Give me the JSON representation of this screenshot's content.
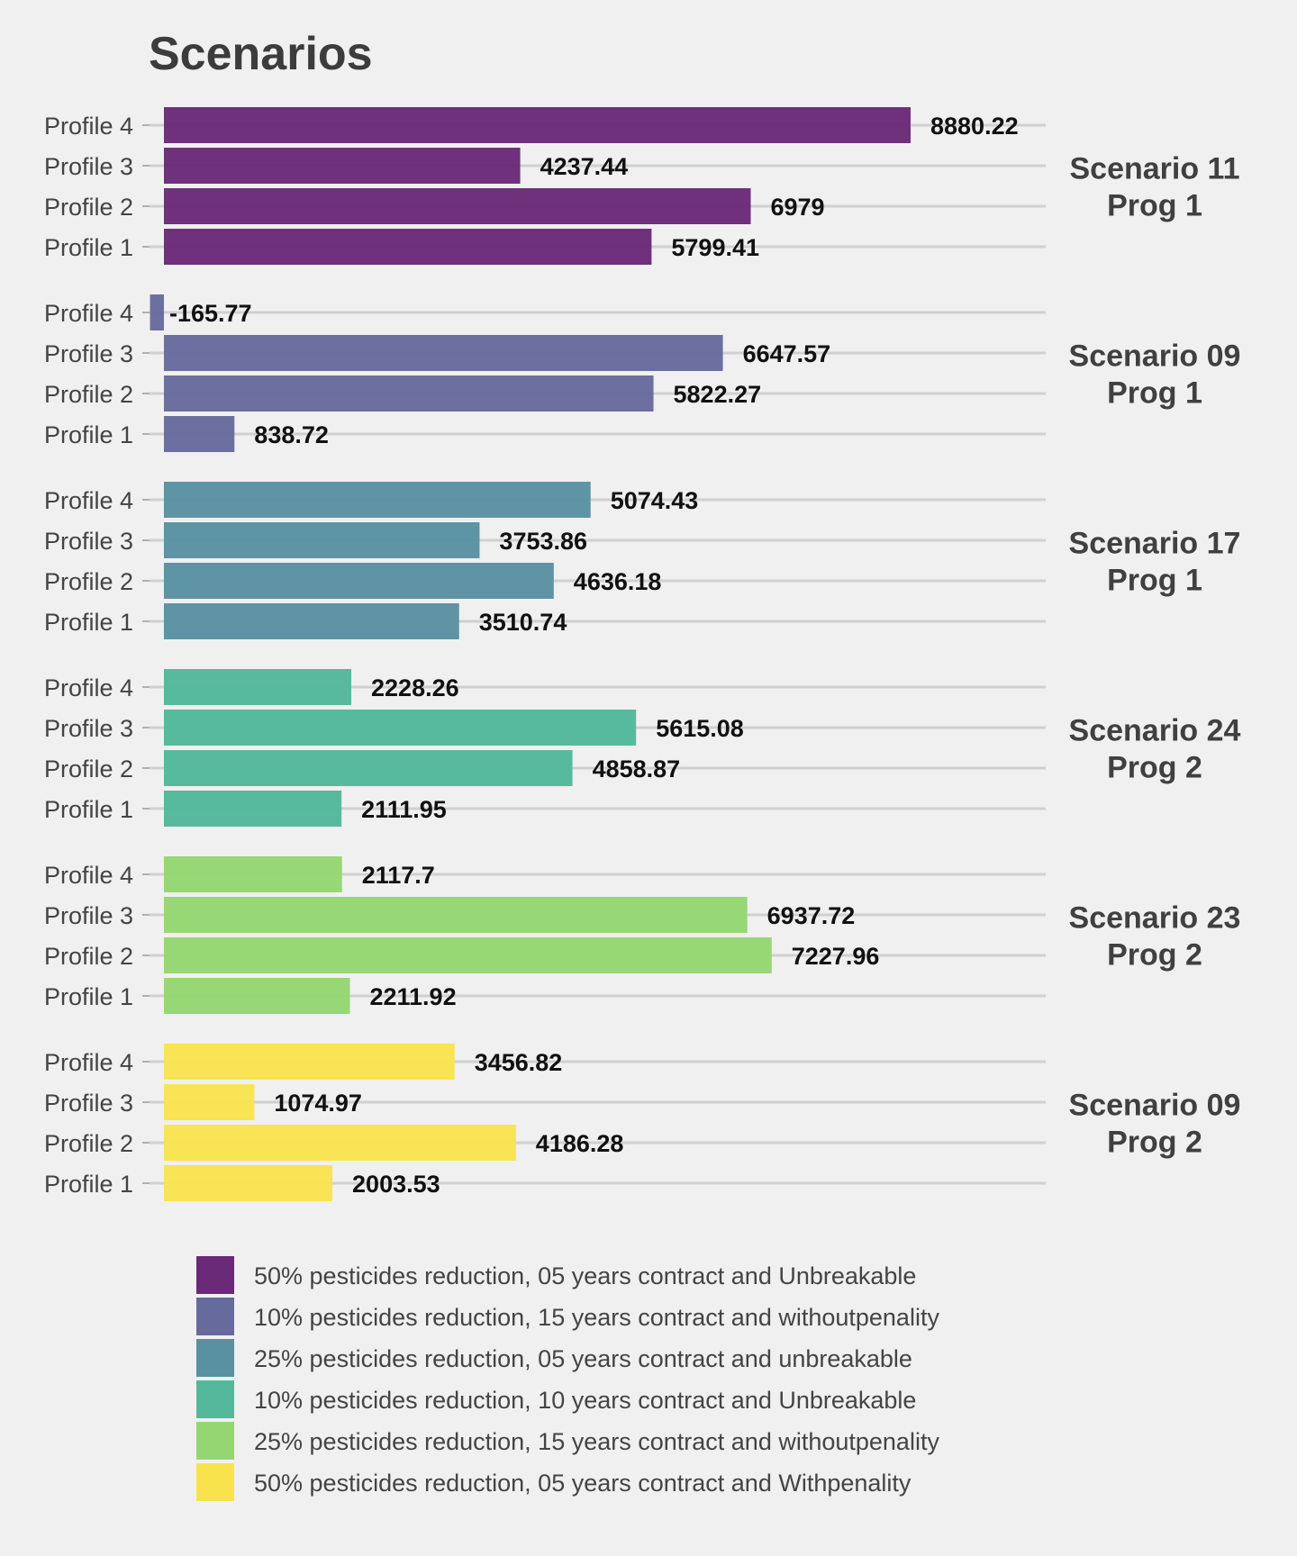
{
  "chart_data": {
    "type": "bar",
    "orientation": "horizontal",
    "title": "Scenarios",
    "grid": true,
    "legend_position": "bottom",
    "xlim": [
      -165.77,
      8880.22
    ],
    "categories": [
      "Profile 4",
      "Profile 3",
      "Profile 2",
      "Profile 1"
    ],
    "series": [
      {
        "name": "50% pesticides reduction, 05 years contract and Unbreakable",
        "facet_label": [
          "Scenario 11",
          "Prog 1"
        ],
        "color": "#6a2a77",
        "values": [
          8880.22,
          4237.44,
          6979,
          5799.41
        ],
        "value_labels": [
          "8880.22",
          "4237.44",
          "6979",
          "5799.41"
        ]
      },
      {
        "name": "10% pesticides reduction, 15 years contract and withoutpenality",
        "facet_label": [
          "Scenario 09",
          "Prog 1"
        ],
        "color": "#676a9d",
        "values": [
          -165.77,
          6647.57,
          5822.27,
          838.72
        ],
        "value_labels": [
          "-165.77",
          "6647.57",
          "5822.27",
          "838.72"
        ]
      },
      {
        "name": "25% pesticides reduction, 05 years contract and unbreakable",
        "facet_label": [
          "Scenario 17",
          "Prog 1"
        ],
        "color": "#5991a1",
        "values": [
          5074.43,
          3753.86,
          4636.18,
          3510.74
        ],
        "value_labels": [
          "5074.43",
          "3753.86",
          "4636.18",
          "3510.74"
        ]
      },
      {
        "name": "10% pesticides reduction, 10 years contract and Unbreakable",
        "facet_label": [
          "Scenario 24",
          "Prog 2"
        ],
        "color": "#53b89a",
        "values": [
          2228.26,
          5615.08,
          4858.87,
          2111.95
        ],
        "value_labels": [
          "2228.26",
          "5615.08",
          "4858.87",
          "2111.95"
        ]
      },
      {
        "name": "25% pesticides reduction, 15 years contract and withoutpenality",
        "facet_label": [
          "Scenario 23",
          "Prog 2"
        ],
        "color": "#95d672",
        "values": [
          2117.7,
          6937.72,
          7227.96,
          2211.92
        ],
        "value_labels": [
          "2117.7",
          "6937.72",
          "7227.96",
          "2211.92"
        ]
      },
      {
        "name": "50% pesticides reduction, 05 years contract and Withpenality",
        "facet_label": [
          "Scenario 09",
          "Prog 2"
        ],
        "color": "#f8e34e",
        "values": [
          3456.82,
          1074.97,
          4186.28,
          2003.53
        ],
        "value_labels": [
          "3456.82",
          "1074.97",
          "4186.28",
          "2003.53"
        ]
      }
    ]
  }
}
